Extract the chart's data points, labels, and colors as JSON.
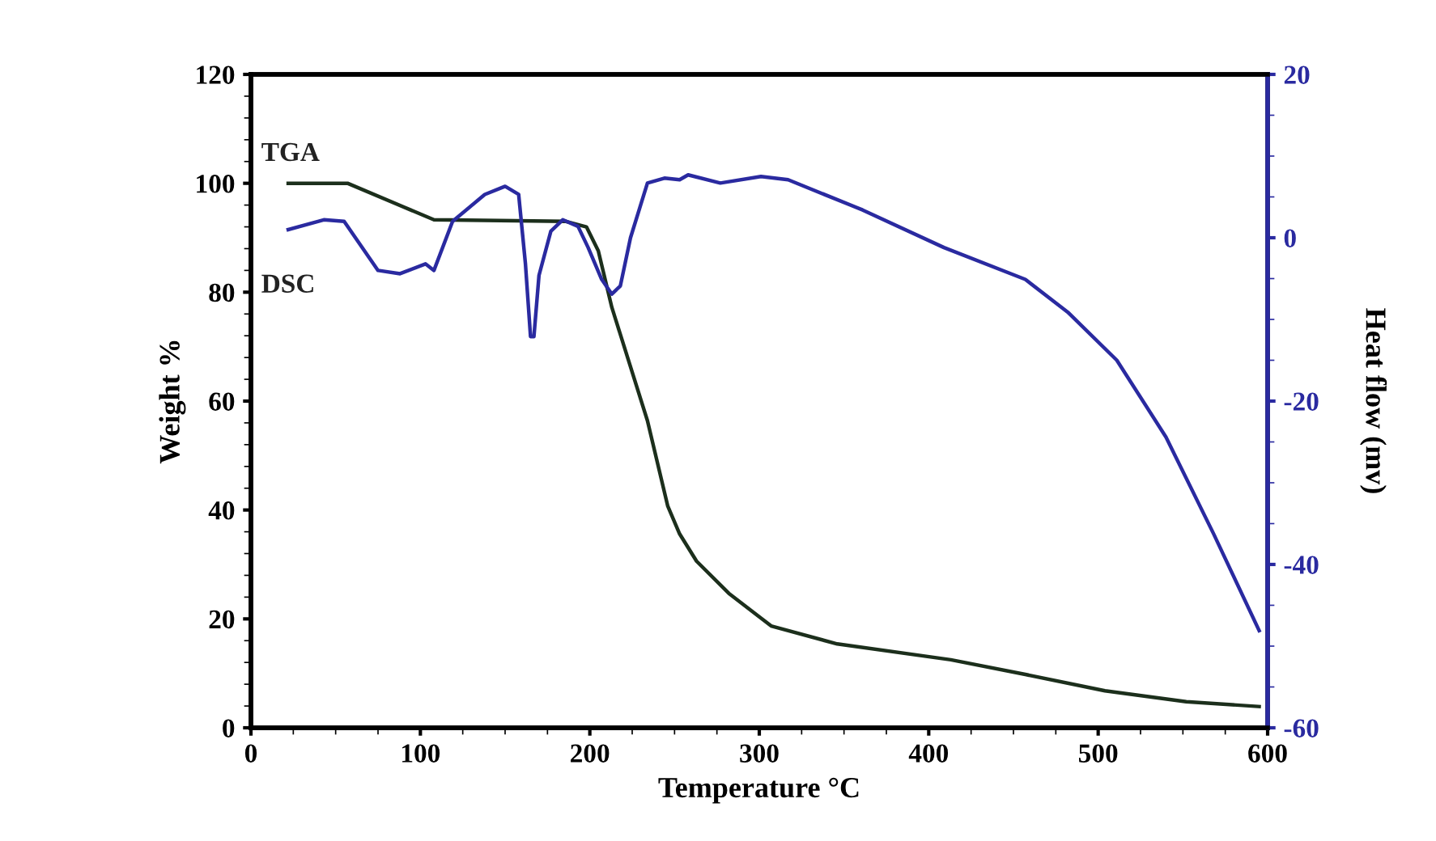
{
  "chart_data": {
    "type": "line",
    "xlabel": "Temperature °C",
    "ylabel": "Weight %",
    "y2label": "Heat flow (mv)",
    "xlim": [
      0,
      600
    ],
    "xticks": [
      0,
      100,
      200,
      300,
      400,
      500,
      600
    ],
    "ylim": [
      0,
      120
    ],
    "yticks": [
      0,
      20,
      40,
      60,
      80,
      100,
      120
    ],
    "y2lim": [
      -60,
      20
    ],
    "y2ticks": [
      -60,
      -40,
      -20,
      0,
      20
    ],
    "grid": false,
    "legend": false,
    "marker": "none",
    "line_style": "solid",
    "series": [
      {
        "name": "TGA",
        "color": "#1c2f1c",
        "x": [
          22,
          57,
          108,
          186,
          198,
          205,
          213,
          234,
          246,
          253,
          263,
          282,
          307,
          346,
          413,
          457,
          504,
          552,
          595
        ],
        "values": [
          100,
          100,
          93.3,
          93,
          92,
          87.6,
          77.2,
          56.4,
          40.7,
          35.6,
          30.6,
          24.7,
          18.7,
          15.4,
          12.5,
          9.8,
          6.8,
          4.8,
          3.9
        ]
      },
      {
        "name": "DSC",
        "color": "#2a2aa0",
        "axis": "y2",
        "x": [
          22,
          43,
          55,
          75,
          88,
          103,
          108,
          119,
          138,
          150,
          158,
          162,
          165,
          167,
          170,
          177,
          184,
          193,
          199,
          207,
          213,
          218,
          224,
          234,
          244,
          253,
          258,
          277,
          301,
          317,
          361,
          409,
          457,
          482,
          511,
          540,
          568,
          595
        ],
        "values": [
          1.0,
          2.2,
          2.0,
          -4.0,
          -4.4,
          -3.2,
          -4.0,
          2.0,
          5.3,
          6.3,
          5.3,
          -3.2,
          -12.1,
          -12.1,
          -4.6,
          0.8,
          2.2,
          1.4,
          -1.2,
          -5.1,
          -6.9,
          -5.9,
          0.0,
          6.7,
          7.3,
          7.1,
          7.7,
          6.7,
          7.5,
          7.1,
          3.4,
          -1.2,
          -5.1,
          -9.1,
          -15.0,
          -24.4,
          -36.2,
          -48.1
        ]
      }
    ]
  }
}
